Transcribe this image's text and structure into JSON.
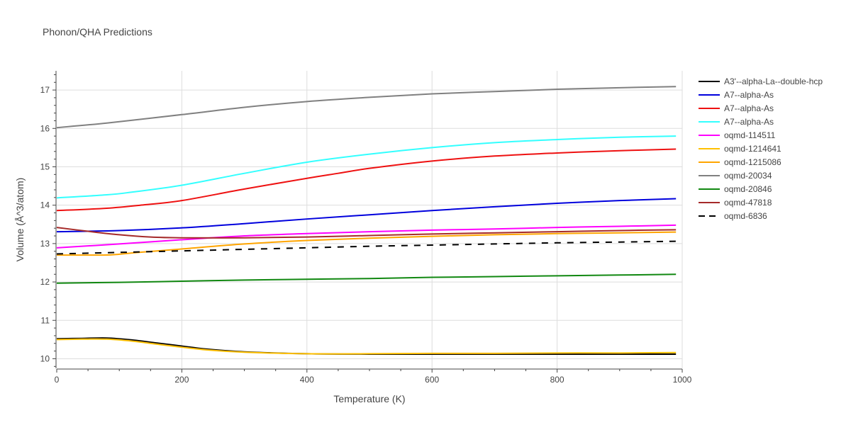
{
  "chart_data": {
    "type": "line",
    "title": "Phonon/QHA Predictions",
    "xlabel": "Temperature (K)",
    "ylabel": "Volume (Å^3/atom)",
    "xlim": [
      0,
      1000
    ],
    "ylim": [
      9.75,
      17.5
    ],
    "x_ticks": [
      0,
      200,
      400,
      600,
      800,
      1000
    ],
    "y_ticks": [
      10,
      11,
      12,
      13,
      14,
      15,
      16,
      17
    ],
    "grid": true,
    "legend_position": "right",
    "series": [
      {
        "name": "A3'--alpha-La--double-hcp",
        "color": "#000000",
        "dash": "solid",
        "points": [
          [
            0,
            10.52
          ],
          [
            40,
            10.53
          ],
          [
            80,
            10.54
          ],
          [
            120,
            10.49
          ],
          [
            160,
            10.41
          ],
          [
            200,
            10.33
          ],
          [
            240,
            10.25
          ],
          [
            300,
            10.18
          ],
          [
            400,
            10.13
          ],
          [
            500,
            10.12
          ],
          [
            600,
            10.12
          ],
          [
            700,
            10.12
          ],
          [
            800,
            10.12
          ],
          [
            900,
            10.12
          ],
          [
            990,
            10.12
          ]
        ]
      },
      {
        "name": "A7--alpha-As",
        "color": "#0000dd",
        "dash": "solid",
        "points": [
          [
            0,
            13.31
          ],
          [
            100,
            13.34
          ],
          [
            200,
            13.41
          ],
          [
            300,
            13.52
          ],
          [
            400,
            13.64
          ],
          [
            500,
            13.75
          ],
          [
            600,
            13.86
          ],
          [
            700,
            13.96
          ],
          [
            800,
            14.05
          ],
          [
            900,
            14.12
          ],
          [
            990,
            14.17
          ]
        ]
      },
      {
        "name": "A7--alpha-As",
        "color": "#ee1111",
        "dash": "solid",
        "points": [
          [
            0,
            13.86
          ],
          [
            80,
            13.92
          ],
          [
            140,
            14.01
          ],
          [
            200,
            14.12
          ],
          [
            300,
            14.42
          ],
          [
            400,
            14.7
          ],
          [
            450,
            14.83
          ],
          [
            500,
            14.96
          ],
          [
            600,
            15.15
          ],
          [
            700,
            15.28
          ],
          [
            800,
            15.36
          ],
          [
            900,
            15.42
          ],
          [
            990,
            15.46
          ]
        ]
      },
      {
        "name": "A7--alpha-As",
        "color": "#33ffff",
        "dash": "solid",
        "points": [
          [
            0,
            14.19
          ],
          [
            80,
            14.27
          ],
          [
            120,
            14.34
          ],
          [
            200,
            14.52
          ],
          [
            300,
            14.83
          ],
          [
            400,
            15.12
          ],
          [
            500,
            15.33
          ],
          [
            600,
            15.5
          ],
          [
            700,
            15.63
          ],
          [
            800,
            15.71
          ],
          [
            900,
            15.77
          ],
          [
            990,
            15.8
          ]
        ]
      },
      {
        "name": "oqmd-114511",
        "color": "#ff00ff",
        "dash": "solid",
        "points": [
          [
            0,
            12.89
          ],
          [
            100,
            12.99
          ],
          [
            200,
            13.1
          ],
          [
            300,
            13.2
          ],
          [
            400,
            13.26
          ],
          [
            500,
            13.31
          ],
          [
            600,
            13.35
          ],
          [
            700,
            13.38
          ],
          [
            800,
            13.42
          ],
          [
            900,
            13.45
          ],
          [
            990,
            13.48
          ]
        ]
      },
      {
        "name": "oqmd-1214641",
        "color": "#ffc000",
        "dash": "solid",
        "points": [
          [
            0,
            10.5
          ],
          [
            40,
            10.51
          ],
          [
            80,
            10.51
          ],
          [
            120,
            10.46
          ],
          [
            160,
            10.38
          ],
          [
            200,
            10.3
          ],
          [
            240,
            10.23
          ],
          [
            300,
            10.17
          ],
          [
            400,
            10.13
          ],
          [
            500,
            10.13
          ],
          [
            600,
            10.14
          ],
          [
            700,
            10.14
          ],
          [
            800,
            10.15
          ],
          [
            900,
            10.15
          ],
          [
            990,
            10.16
          ]
        ]
      },
      {
        "name": "oqmd-1215086",
        "color": "#ffa500",
        "dash": "solid",
        "points": [
          [
            0,
            12.7
          ],
          [
            60,
            12.7
          ],
          [
            90,
            12.71
          ],
          [
            130,
            12.77
          ],
          [
            200,
            12.86
          ],
          [
            300,
            12.99
          ],
          [
            400,
            13.08
          ],
          [
            500,
            13.14
          ],
          [
            600,
            13.19
          ],
          [
            700,
            13.23
          ],
          [
            800,
            13.26
          ],
          [
            900,
            13.28
          ],
          [
            990,
            13.3
          ]
        ]
      },
      {
        "name": "oqmd-20034",
        "color": "#808080",
        "dash": "solid",
        "points": [
          [
            0,
            16.02
          ],
          [
            80,
            16.14
          ],
          [
            200,
            16.36
          ],
          [
            300,
            16.55
          ],
          [
            400,
            16.7
          ],
          [
            500,
            16.81
          ],
          [
            600,
            16.9
          ],
          [
            700,
            16.96
          ],
          [
            800,
            17.02
          ],
          [
            900,
            17.06
          ],
          [
            990,
            17.09
          ]
        ]
      },
      {
        "name": "oqmd-20846",
        "color": "#118811",
        "dash": "solid",
        "points": [
          [
            0,
            11.97
          ],
          [
            100,
            11.99
          ],
          [
            200,
            12.02
          ],
          [
            300,
            12.05
          ],
          [
            400,
            12.07
          ],
          [
            500,
            12.09
          ],
          [
            600,
            12.12
          ],
          [
            700,
            12.14
          ],
          [
            800,
            12.16
          ],
          [
            900,
            12.18
          ],
          [
            990,
            12.2
          ]
        ]
      },
      {
        "name": "oqmd-47818",
        "color": "#a52a2a",
        "dash": "solid",
        "points": [
          [
            0,
            13.42
          ],
          [
            50,
            13.32
          ],
          [
            100,
            13.23
          ],
          [
            150,
            13.17
          ],
          [
            200,
            13.15
          ],
          [
            300,
            13.15
          ],
          [
            400,
            13.17
          ],
          [
            500,
            13.21
          ],
          [
            600,
            13.25
          ],
          [
            700,
            13.28
          ],
          [
            800,
            13.31
          ],
          [
            900,
            13.34
          ],
          [
            990,
            13.36
          ]
        ]
      },
      {
        "name": "oqmd-6836",
        "color": "#000000",
        "dash": "dash",
        "points": [
          [
            0,
            12.73
          ],
          [
            100,
            12.77
          ],
          [
            200,
            12.81
          ],
          [
            300,
            12.85
          ],
          [
            400,
            12.89
          ],
          [
            500,
            12.93
          ],
          [
            600,
            12.96
          ],
          [
            700,
            12.99
          ],
          [
            800,
            13.02
          ],
          [
            900,
            13.04
          ],
          [
            990,
            13.06
          ]
        ]
      }
    ]
  }
}
